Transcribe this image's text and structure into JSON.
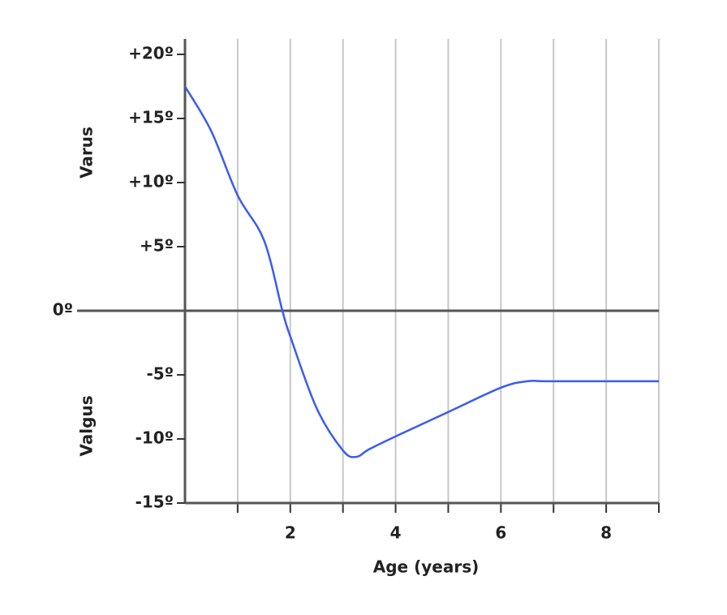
{
  "chart_data": {
    "type": "line",
    "xlabel": "Age (years)",
    "ylabel_top": "Varus",
    "ylabel_bottom": "Valgus",
    "xlim": [
      0,
      9
    ],
    "xticks": [
      2,
      4,
      6,
      8
    ],
    "minor_xticks": [
      1,
      3,
      5,
      7,
      9
    ],
    "ylim": [
      -15,
      20
    ],
    "yticks": [
      {
        "value": 20,
        "label": "+20º"
      },
      {
        "value": 15,
        "label": "+15º"
      },
      {
        "value": 10,
        "label": "+10º"
      },
      {
        "value": 5,
        "label": "+5º"
      },
      {
        "value": 0,
        "label": "0º"
      },
      {
        "value": -5,
        "label": "-5º"
      },
      {
        "value": -10,
        "label": "-10º"
      },
      {
        "value": -15,
        "label": "-15º"
      }
    ],
    "grid": true,
    "series": [
      {
        "color": "#3a5cf0",
        "x": [
          0,
          0.5,
          1,
          1.5,
          1.85,
          2,
          2.5,
          3,
          3.25,
          3.5,
          4,
          5,
          6,
          6.5,
          7,
          9
        ],
        "values": [
          17.5,
          14,
          9,
          5.5,
          0,
          -2,
          -7.6,
          -10.9,
          -11.4,
          -10.8,
          -9.8,
          -7.9,
          -6,
          -5.5,
          -5.5,
          -5.5
        ]
      }
    ]
  }
}
